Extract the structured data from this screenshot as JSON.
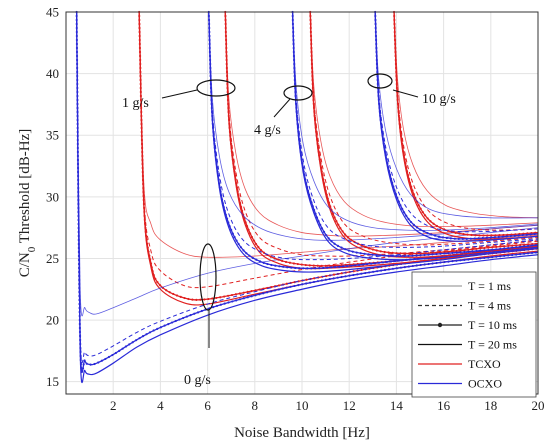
{
  "chart_data": {
    "type": "line",
    "xlabel": "Noise Bandwidth [Hz]",
    "ylabel": "C/N0 Threshold [dB-Hz]",
    "xlim": [
      0,
      20
    ],
    "ylim": [
      14,
      45
    ],
    "xticks": [
      "2",
      "4",
      "6",
      "8",
      "10",
      "12",
      "14",
      "16",
      "18",
      "20"
    ],
    "yticks": [
      "15",
      "20",
      "25",
      "30",
      "35",
      "40",
      "45"
    ],
    "grid": true,
    "legend_position": "bottom-right",
    "legend": [
      {
        "label": "T = 1 ms",
        "style": "thin",
        "color": "#888888"
      },
      {
        "label": "T = 4 ms",
        "style": "dashed",
        "color": "#333333"
      },
      {
        "label": "T = 10 ms",
        "style": "dotted-marker",
        "color": "#222222"
      },
      {
        "label": "T = 20 ms",
        "style": "solid",
        "color": "#111111"
      },
      {
        "label": "TCXO",
        "style": "solid",
        "color": "#e02020"
      },
      {
        "label": "OCXO",
        "style": "solid",
        "color": "#2a2ad8"
      }
    ],
    "annotations": [
      {
        "text": "1 g/s",
        "x": 6.6,
        "y": 38.7
      },
      {
        "text": "4 g/s",
        "x": 10.2,
        "y": 38.3
      },
      {
        "text": "10 g/s",
        "x": 13.6,
        "y": 39.3
      },
      {
        "text": "0 g/s",
        "x": 6.5,
        "y": 22.5
      }
    ],
    "series": [
      {
        "oscillator": "TCXO",
        "accel": "0 g/s",
        "T": "1 ms",
        "x": [
          3.1,
          3.3,
          3.6,
          4,
          5,
          6,
          8,
          10,
          12,
          14,
          16,
          18,
          20
        ],
        "y": [
          45,
          31,
          27.8,
          26.5,
          25.4,
          25.1,
          25.2,
          25.5,
          25.8,
          26,
          26.3,
          26.6,
          26.9
        ]
      },
      {
        "oscillator": "TCXO",
        "accel": "0 g/s",
        "T": "4 ms",
        "x": [
          3.1,
          3.3,
          3.6,
          4,
          5,
          6,
          8,
          10,
          12,
          14,
          16,
          18,
          20
        ],
        "y": [
          45,
          30,
          25.6,
          24,
          22.8,
          22.7,
          23.4,
          24.1,
          24.7,
          25.2,
          25.6,
          26,
          26.4
        ]
      },
      {
        "oscillator": "TCXO",
        "accel": "0 g/s",
        "T": "10 ms",
        "x": [
          3.1,
          3.3,
          3.6,
          4,
          5,
          6,
          8,
          10,
          12,
          14,
          16,
          18,
          20
        ],
        "y": [
          45,
          29.5,
          24.6,
          22.8,
          21.8,
          21.7,
          22.4,
          23.2,
          23.9,
          24.5,
          25,
          25.4,
          25.8
        ]
      },
      {
        "oscillator": "TCXO",
        "accel": "0 g/s",
        "T": "20 ms",
        "x": [
          3.1,
          3.3,
          3.6,
          4,
          5,
          6,
          8,
          10,
          12,
          14,
          16,
          18,
          20
        ],
        "y": [
          45,
          29.2,
          24.3,
          22.5,
          21.4,
          21.3,
          22.1,
          22.9,
          23.6,
          24.2,
          24.7,
          25.2,
          25.6
        ]
      },
      {
        "oscillator": "OCXO",
        "accel": "0 g/s",
        "T": "1 ms",
        "x": [
          0.45,
          0.6,
          0.8,
          1,
          1.3,
          2,
          3,
          4,
          6,
          8,
          10,
          12,
          14,
          16,
          18,
          20
        ],
        "y": [
          45,
          22.5,
          21,
          20.6,
          20.5,
          21,
          21.8,
          22.6,
          23.8,
          24.6,
          25.2,
          25.8,
          26.3,
          26.7,
          27.1,
          27.5
        ]
      },
      {
        "oscillator": "OCXO",
        "accel": "0 g/s",
        "T": "4 ms",
        "x": [
          0.45,
          0.6,
          0.8,
          1,
          1.3,
          2,
          3,
          4,
          6,
          8,
          10,
          12,
          14,
          16,
          18,
          20
        ],
        "y": [
          45,
          19,
          17.4,
          17.1,
          17.2,
          17.9,
          19,
          19.9,
          21.3,
          22.3,
          23.2,
          23.9,
          24.5,
          25,
          25.4,
          25.8
        ]
      },
      {
        "oscillator": "OCXO",
        "accel": "0 g/s",
        "T": "10 ms",
        "x": [
          0.45,
          0.6,
          0.8,
          1,
          1.3,
          2,
          3,
          4,
          6,
          8,
          10,
          12,
          14,
          16,
          18,
          20
        ],
        "y": [
          45,
          18.3,
          16.7,
          16.4,
          16.5,
          17.2,
          18.4,
          19.4,
          20.9,
          22,
          22.9,
          23.6,
          24.2,
          24.7,
          25.1,
          25.5
        ]
      },
      {
        "oscillator": "OCXO",
        "accel": "0 g/s",
        "T": "20 ms",
        "x": [
          0.45,
          0.6,
          0.8,
          1,
          1.3,
          2,
          3,
          4,
          6,
          8,
          10,
          12,
          14,
          16,
          18,
          20
        ],
        "y": [
          45,
          17.5,
          15.9,
          15.6,
          15.7,
          16.5,
          17.8,
          18.8,
          20.4,
          21.6,
          22.5,
          23.3,
          23.9,
          24.4,
          24.9,
          25.3
        ]
      },
      {
        "oscillator": "TCXO",
        "accel": "1 g/s",
        "T": "1 ms",
        "x": [
          6.75,
          6.9,
          7.2,
          7.6,
          8.2,
          9,
          10,
          11,
          12,
          14,
          16,
          18,
          20
        ],
        "y": [
          45,
          38,
          33.5,
          30.6,
          28.7,
          27.7,
          27.1,
          26.9,
          26.8,
          26.9,
          27.1,
          27.4,
          27.7
        ]
      },
      {
        "oscillator": "TCXO",
        "accel": "1 g/s",
        "T": "4 ms",
        "x": [
          6.75,
          6.9,
          7.2,
          7.6,
          8.2,
          9,
          10,
          11,
          12,
          14,
          16,
          18,
          20
        ],
        "y": [
          45,
          37,
          32,
          28.8,
          26.7,
          25.8,
          25.3,
          25.2,
          25.2,
          25.4,
          25.7,
          26.1,
          26.5
        ]
      },
      {
        "oscillator": "TCXO",
        "accel": "1 g/s",
        "T": "10 ms",
        "x": [
          6.75,
          6.9,
          7.2,
          7.6,
          8.2,
          9,
          10,
          11,
          12,
          14,
          16,
          18,
          20
        ],
        "y": [
          45,
          36.5,
          31.3,
          28,
          25.8,
          24.9,
          24.5,
          24.4,
          24.5,
          24.8,
          25.2,
          25.6,
          26
        ]
      },
      {
        "oscillator": "TCXO",
        "accel": "1 g/s",
        "T": "20 ms",
        "x": [
          6.75,
          6.9,
          7.2,
          7.6,
          8.2,
          9,
          10,
          11,
          12,
          14,
          16,
          18,
          20
        ],
        "y": [
          45,
          36.2,
          31,
          27.7,
          25.5,
          24.6,
          24.2,
          24.2,
          24.3,
          24.6,
          25,
          25.4,
          25.8
        ]
      },
      {
        "oscillator": "OCXO",
        "accel": "1 g/s",
        "T": "1 ms",
        "x": [
          6.05,
          6.2,
          6.5,
          6.9,
          7.5,
          8.3,
          9.3,
          10.5,
          12,
          14,
          16,
          18,
          20
        ],
        "y": [
          45,
          38,
          33.3,
          30.4,
          28.5,
          27.4,
          26.8,
          26.5,
          26.5,
          26.7,
          27,
          27.4,
          27.7
        ]
      },
      {
        "oscillator": "OCXO",
        "accel": "1 g/s",
        "T": "4 ms",
        "x": [
          6.05,
          6.2,
          6.5,
          6.9,
          7.5,
          8.3,
          9.3,
          10.5,
          12,
          14,
          16,
          18,
          20
        ],
        "y": [
          45,
          37,
          31.8,
          28.6,
          26.5,
          25.5,
          25,
          24.9,
          25,
          25.3,
          25.7,
          26.1,
          26.5
        ]
      },
      {
        "oscillator": "OCXO",
        "accel": "1 g/s",
        "T": "10 ms",
        "x": [
          6.05,
          6.2,
          6.5,
          6.9,
          7.5,
          8.3,
          9.3,
          10.5,
          12,
          14,
          16,
          18,
          20
        ],
        "y": [
          45,
          36.5,
          31,
          27.8,
          25.7,
          24.7,
          24.3,
          24.2,
          24.4,
          24.8,
          25.2,
          25.6,
          26
        ]
      },
      {
        "oscillator": "OCXO",
        "accel": "1 g/s",
        "T": "20 ms",
        "x": [
          6.05,
          6.2,
          6.5,
          6.9,
          7.5,
          8.3,
          9.3,
          10.5,
          12,
          14,
          16,
          18,
          20
        ],
        "y": [
          45,
          36.2,
          30.7,
          27.5,
          25.4,
          24.4,
          24,
          23.9,
          24.1,
          24.5,
          24.9,
          25.4,
          25.8
        ]
      },
      {
        "oscillator": "TCXO",
        "accel": "4 g/s",
        "T": "1 ms",
        "x": [
          10.35,
          10.5,
          10.8,
          11.2,
          11.8,
          12.6,
          13.6,
          15,
          16.5,
          18,
          20
        ],
        "y": [
          45,
          39,
          34.5,
          31.6,
          29.6,
          28.5,
          27.9,
          27.6,
          27.6,
          27.7,
          27.9
        ]
      },
      {
        "oscillator": "TCXO",
        "accel": "4 g/s",
        "T": "4 ms",
        "x": [
          10.35,
          10.5,
          10.8,
          11.2,
          11.8,
          12.6,
          13.6,
          15,
          16.5,
          18,
          20
        ],
        "y": [
          45,
          38,
          33.2,
          30,
          27.8,
          26.8,
          26.3,
          26.1,
          26.2,
          26.4,
          26.7
        ]
      },
      {
        "oscillator": "TCXO",
        "accel": "4 g/s",
        "T": "10 ms",
        "x": [
          10.35,
          10.5,
          10.8,
          11.2,
          11.8,
          12.6,
          13.6,
          15,
          16.5,
          18,
          20
        ],
        "y": [
          45,
          37.5,
          32.5,
          29.2,
          27,
          26,
          25.5,
          25.4,
          25.6,
          25.9,
          26.2
        ]
      },
      {
        "oscillator": "TCXO",
        "accel": "4 g/s",
        "T": "20 ms",
        "x": [
          10.35,
          10.5,
          10.8,
          11.2,
          11.8,
          12.6,
          13.6,
          15,
          16.5,
          18,
          20
        ],
        "y": [
          45,
          37.2,
          32.2,
          28.9,
          26.7,
          25.7,
          25.2,
          25.1,
          25.3,
          25.6,
          26
        ]
      },
      {
        "oscillator": "OCXO",
        "accel": "4 g/s",
        "T": "1 ms",
        "x": [
          9.6,
          9.75,
          10.05,
          10.5,
          11.1,
          11.9,
          13,
          14.4,
          16,
          18,
          20
        ],
        "y": [
          45,
          39,
          34.3,
          31.3,
          29.2,
          28.1,
          27.5,
          27.3,
          27.3,
          27.5,
          27.8
        ]
      },
      {
        "oscillator": "OCXO",
        "accel": "4 g/s",
        "T": "4 ms",
        "x": [
          9.6,
          9.75,
          10.05,
          10.5,
          11.1,
          11.9,
          13,
          14.4,
          16,
          18,
          20
        ],
        "y": [
          45,
          38,
          33,
          29.7,
          27.5,
          26.5,
          26,
          25.9,
          26,
          26.3,
          26.6
        ]
      },
      {
        "oscillator": "OCXO",
        "accel": "4 g/s",
        "T": "10 ms",
        "x": [
          9.6,
          9.75,
          10.05,
          10.5,
          11.1,
          11.9,
          13,
          14.4,
          16,
          18,
          20
        ],
        "y": [
          45,
          37.5,
          32.3,
          29,
          26.7,
          25.7,
          25.3,
          25.2,
          25.4,
          25.7,
          26.1
        ]
      },
      {
        "oscillator": "OCXO",
        "accel": "4 g/s",
        "T": "20 ms",
        "x": [
          9.6,
          9.75,
          10.05,
          10.5,
          11.1,
          11.9,
          13,
          14.4,
          16,
          18,
          20
        ],
        "y": [
          45,
          37.2,
          32,
          28.7,
          26.4,
          25.4,
          25,
          24.9,
          25.1,
          25.5,
          25.9
        ]
      },
      {
        "oscillator": "TCXO",
        "accel": "10 g/s",
        "T": "1 ms",
        "x": [
          13.9,
          14.05,
          14.3,
          14.7,
          15.3,
          16.1,
          17.2,
          18.5,
          20
        ],
        "y": [
          45,
          39.5,
          35.5,
          32.6,
          30.5,
          29.3,
          28.7,
          28.4,
          28.3
        ]
      },
      {
        "oscillator": "TCXO",
        "accel": "10 g/s",
        "T": "4 ms",
        "x": [
          13.9,
          14.05,
          14.3,
          14.7,
          15.3,
          16.1,
          17.2,
          18.5,
          20
        ],
        "y": [
          45,
          38.5,
          34.2,
          31.1,
          29,
          27.9,
          27.4,
          27.3,
          27.4
        ]
      },
      {
        "oscillator": "TCXO",
        "accel": "10 g/s",
        "T": "10 ms",
        "x": [
          13.9,
          14.05,
          14.3,
          14.7,
          15.3,
          16.1,
          17.2,
          18.5,
          20
        ],
        "y": [
          45,
          38,
          33.6,
          30.4,
          28.3,
          27.3,
          26.9,
          26.9,
          27.1
        ]
      },
      {
        "oscillator": "TCXO",
        "accel": "10 g/s",
        "T": "20 ms",
        "x": [
          13.9,
          14.05,
          14.3,
          14.7,
          15.3,
          16.1,
          17.2,
          18.5,
          20
        ],
        "y": [
          45,
          37.7,
          33.3,
          30.1,
          28,
          27,
          26.6,
          26.6,
          26.8
        ]
      },
      {
        "oscillator": "OCXO",
        "accel": "10 g/s",
        "T": "1 ms",
        "x": [
          13.1,
          13.25,
          13.55,
          14,
          14.6,
          15.4,
          16.5,
          18,
          20
        ],
        "y": [
          45,
          39.5,
          35.3,
          32.3,
          30.2,
          29,
          28.5,
          28.3,
          28.3
        ]
      },
      {
        "oscillator": "OCXO",
        "accel": "10 g/s",
        "T": "4 ms",
        "x": [
          13.1,
          13.25,
          13.55,
          14,
          14.6,
          15.4,
          16.5,
          18,
          20
        ],
        "y": [
          45,
          38.5,
          34,
          30.8,
          28.7,
          27.6,
          27.2,
          27.2,
          27.4
        ]
      },
      {
        "oscillator": "OCXO",
        "accel": "10 g/s",
        "T": "10 ms",
        "x": [
          13.1,
          13.25,
          13.55,
          14,
          14.6,
          15.4,
          16.5,
          18,
          20
        ],
        "y": [
          45,
          38,
          33.4,
          30.1,
          28,
          27,
          26.6,
          26.7,
          27
        ]
      },
      {
        "oscillator": "OCXO",
        "accel": "10 g/s",
        "T": "20 ms",
        "x": [
          13.1,
          13.25,
          13.55,
          14,
          14.6,
          15.4,
          16.5,
          18,
          20
        ],
        "y": [
          45,
          37.7,
          33.1,
          29.8,
          27.7,
          26.7,
          26.4,
          26.5,
          26.8
        ]
      }
    ]
  }
}
